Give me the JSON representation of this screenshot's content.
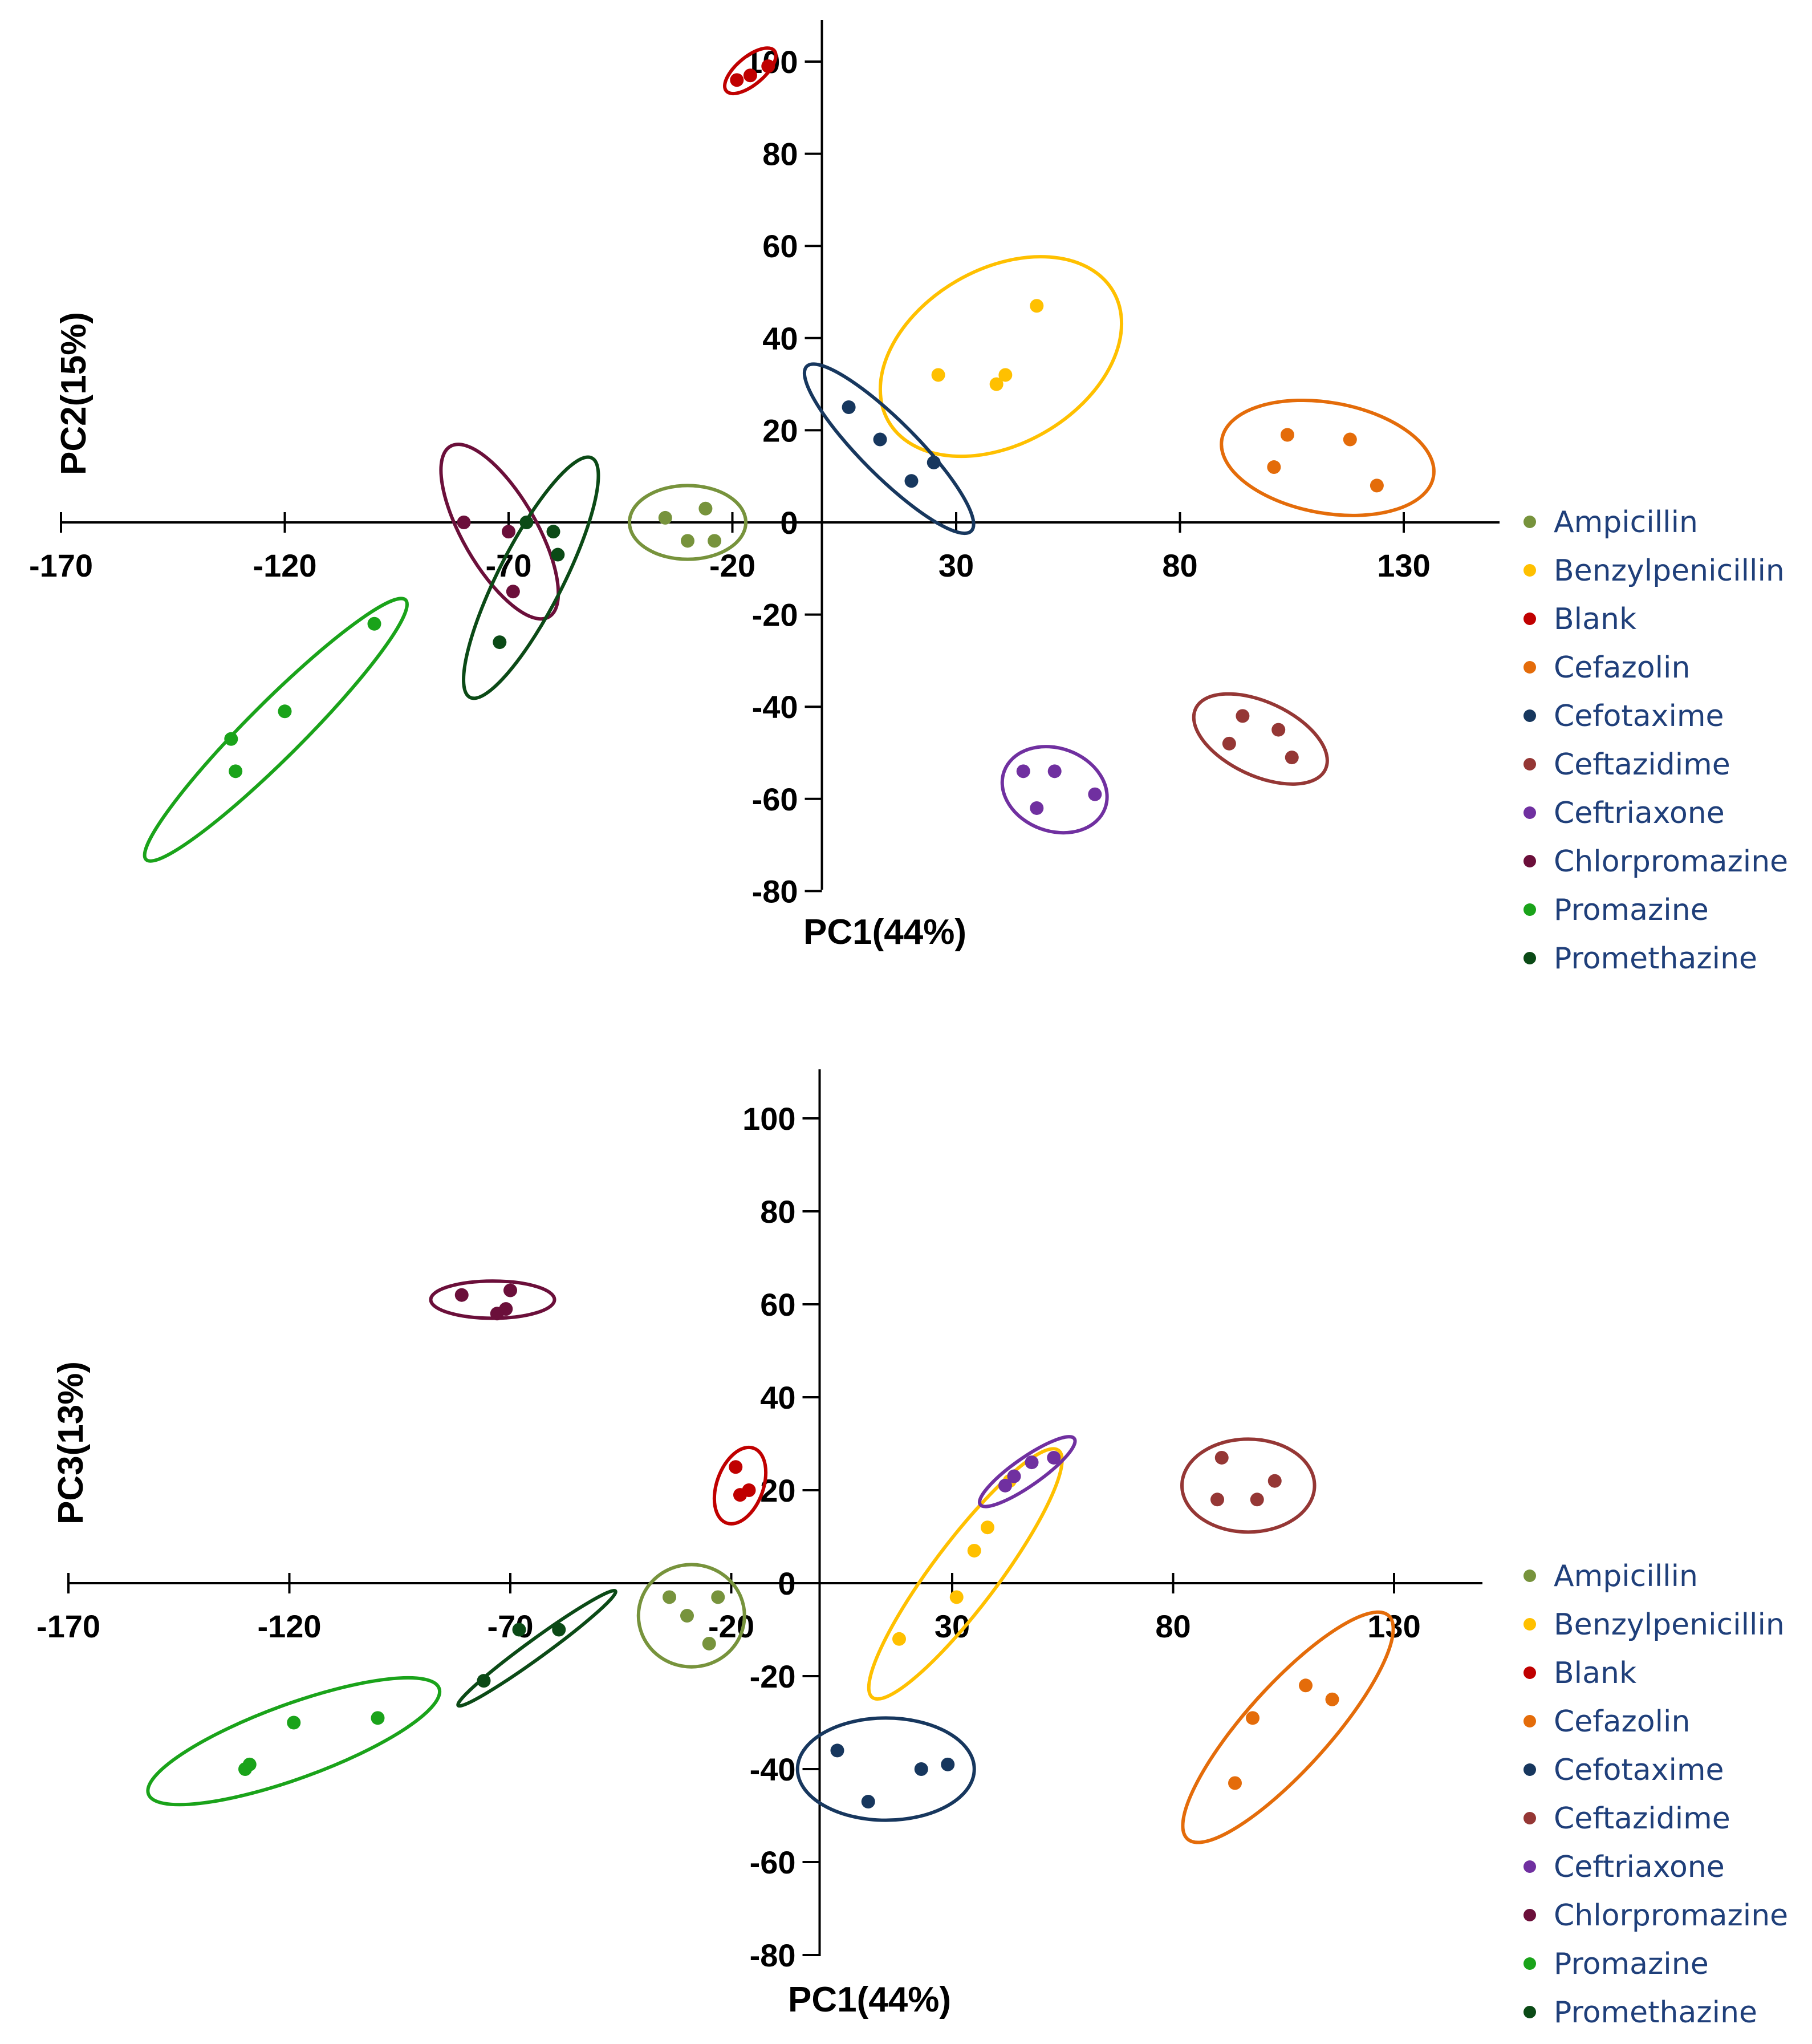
{
  "chart_data": [
    {
      "type": "scatter",
      "title": "",
      "xlabel": "PC1(44%)",
      "ylabel": "PC2(15%)",
      "xlim": [
        -170,
        150
      ],
      "ylim": [
        -80,
        110
      ],
      "xticks": [
        -170,
        -120,
        -70,
        -20,
        30,
        80,
        130
      ],
      "yticks": [
        -80,
        -60,
        -40,
        -20,
        0,
        20,
        40,
        60,
        80,
        100
      ],
      "xtick_labels": [
        "-170",
        "-120",
        "-70",
        "-20",
        "30",
        "80",
        "130"
      ],
      "ytick_labels": [
        "-80",
        "-60",
        "-40",
        "-20",
        "0",
        "20",
        "40",
        "60",
        "80",
        "100"
      ],
      "legend_position": "right",
      "series": [
        {
          "name": "Ampicillin",
          "color": "#77933c",
          "points": [
            [
              -35,
              1
            ],
            [
              -26,
              3
            ],
            [
              -30,
              -4
            ],
            [
              -24,
              -4
            ]
          ],
          "ellipse": {
            "cx": -30,
            "cy": 0,
            "rx": 13,
            "ry": 8,
            "angle": 0
          }
        },
        {
          "name": "Benzylpenicillin",
          "color": "#ffc000",
          "points": [
            [
              48,
              47
            ],
            [
              26,
              32
            ],
            [
              41,
              32
            ],
            [
              39,
              30
            ]
          ],
          "ellipse": {
            "cx": 40,
            "cy": 36,
            "rx": 29,
            "ry": 19,
            "angle": 30
          }
        },
        {
          "name": "Blank",
          "color": "#c00000",
          "points": [
            [
              -16,
              97
            ],
            [
              -12,
              99
            ],
            [
              -19,
              96
            ]
          ],
          "ellipse": {
            "cx": -16,
            "cy": 98,
            "rx": 7,
            "ry": 3,
            "angle": 40
          }
        },
        {
          "name": "Cefazolin",
          "color": "#e46c0a",
          "points": [
            [
              104,
              19
            ],
            [
              118,
              18
            ],
            [
              101,
              12
            ],
            [
              124,
              8
            ]
          ],
          "ellipse": {
            "cx": 113,
            "cy": 14,
            "rx": 24,
            "ry": 12,
            "angle": -10
          }
        },
        {
          "name": "Cefotaxime",
          "color": "#17375e",
          "points": [
            [
              6,
              25
            ],
            [
              13,
              18
            ],
            [
              20,
              9
            ],
            [
              25,
              13
            ]
          ],
          "ellipse": {
            "cx": 15,
            "cy": 16,
            "rx": 26,
            "ry": 6,
            "angle": -45
          }
        },
        {
          "name": "Ceftazidime",
          "color": "#953735",
          "points": [
            [
              94,
              -42
            ],
            [
              102,
              -45
            ],
            [
              91,
              -48
            ],
            [
              105,
              -51
            ]
          ],
          "ellipse": {
            "cx": 98,
            "cy": -47,
            "rx": 16,
            "ry": 8,
            "angle": -25
          }
        },
        {
          "name": "Ceftriaxone",
          "color": "#7030a0",
          "points": [
            [
              45,
              -54
            ],
            [
              52,
              -54
            ],
            [
              48,
              -62
            ],
            [
              61,
              -59
            ]
          ],
          "ellipse": {
            "cx": 52,
            "cy": -58,
            "rx": 12,
            "ry": 9,
            "angle": -20
          }
        },
        {
          "name": "Chlorpromazine",
          "color": "#6b0f3a",
          "points": [
            [
              -80,
              0
            ],
            [
              -70,
              -2
            ],
            [
              -69,
              -15
            ]
          ],
          "ellipse": {
            "cx": -72,
            "cy": -2,
            "rx": 22,
            "ry": 8,
            "angle": -60
          }
        },
        {
          "name": "Promazine",
          "color": "#1aa31a",
          "points": [
            [
              -100,
              -22
            ],
            [
              -120,
              -41
            ],
            [
              -132,
              -47
            ],
            [
              -131,
              -54
            ]
          ],
          "ellipse": {
            "cx": -122,
            "cy": -45,
            "rx": 41,
            "ry": 6,
            "angle": 45
          }
        },
        {
          "name": "Promethazine",
          "color": "#0b4a16",
          "points": [
            [
              -66,
              0
            ],
            [
              -60,
              -2
            ],
            [
              -59,
              -7
            ],
            [
              -72,
              -26
            ]
          ],
          "ellipse": {
            "cx": -65,
            "cy": -12,
            "rx": 30,
            "ry": 7,
            "angle": 63
          }
        }
      ]
    },
    {
      "type": "scatter",
      "title": "",
      "xlabel": "PC1(44%)",
      "ylabel": "PC3(13%)",
      "xlim": [
        -170,
        150
      ],
      "ylim": [
        -80,
        110
      ],
      "xticks": [
        -170,
        -120,
        -70,
        -20,
        30,
        80,
        130
      ],
      "yticks": [
        -80,
        -60,
        -40,
        -20,
        0,
        20,
        40,
        60,
        80,
        100
      ],
      "xtick_labels": [
        "-170",
        "-120",
        "-70",
        "-20",
        "30",
        "80",
        "130"
      ],
      "ytick_labels": [
        "-80",
        "-60",
        "-40",
        "-20",
        "0",
        "20",
        "40",
        "60",
        "80",
        "100"
      ],
      "legend_position": "right",
      "series": [
        {
          "name": "Ampicillin",
          "color": "#77933c",
          "points": [
            [
              -34,
              -3
            ],
            [
              -30,
              -7
            ],
            [
              -23,
              -3
            ],
            [
              -25,
              -13
            ]
          ],
          "ellipse": {
            "cx": -29,
            "cy": -7,
            "rx": 12,
            "ry": 11,
            "angle": 0
          }
        },
        {
          "name": "Benzylpenicillin",
          "color": "#ffc000",
          "points": [
            [
              18,
              -12
            ],
            [
              31,
              -3
            ],
            [
              35,
              7
            ],
            [
              38,
              12
            ],
            [
              43,
              22
            ]
          ],
          "ellipse": {
            "cx": 33,
            "cy": 2,
            "rx": 35,
            "ry": 7,
            "angle": 53
          }
        },
        {
          "name": "Blank",
          "color": "#c00000",
          "points": [
            [
              -19,
              25
            ],
            [
              -16,
              20
            ],
            [
              -18,
              19
            ]
          ],
          "ellipse": {
            "cx": -18,
            "cy": 21,
            "rx": 9,
            "ry": 5,
            "angle": 70
          }
        },
        {
          "name": "Cefazolin",
          "color": "#e46c0a",
          "points": [
            [
              110,
              -22
            ],
            [
              98,
              -29
            ],
            [
              116,
              -25
            ],
            [
              94,
              -43
            ]
          ],
          "ellipse": {
            "cx": 106,
            "cy": -31,
            "rx": 34,
            "ry": 9,
            "angle": 48
          }
        },
        {
          "name": "Cefotaxime",
          "color": "#17375e",
          "points": [
            [
              4,
              -36
            ],
            [
              23,
              -40
            ],
            [
              29,
              -39
            ],
            [
              11,
              -47
            ]
          ],
          "ellipse": {
            "cx": 15,
            "cy": -40,
            "rx": 20,
            "ry": 11,
            "angle": 0
          }
        },
        {
          "name": "Ceftazidime",
          "color": "#953735",
          "points": [
            [
              91,
              27
            ],
            [
              103,
              22
            ],
            [
              90,
              18
            ],
            [
              99,
              18
            ]
          ],
          "ellipse": {
            "cx": 97,
            "cy": 21,
            "rx": 15,
            "ry": 10,
            "angle": 0
          }
        },
        {
          "name": "Ceftriaxone",
          "color": "#7030a0",
          "points": [
            [
              42,
              21
            ],
            [
              48,
              26
            ],
            [
              53,
              27
            ],
            [
              44,
              23
            ]
          ],
          "ellipse": {
            "cx": 47,
            "cy": 24,
            "rx": 13,
            "ry": 3,
            "angle": 35
          }
        },
        {
          "name": "Chlorpromazine",
          "color": "#6b0f3a",
          "points": [
            [
              -81,
              62
            ],
            [
              -70,
              63
            ],
            [
              -71,
              59
            ],
            [
              -73,
              58
            ]
          ],
          "ellipse": {
            "cx": -74,
            "cy": 61,
            "rx": 14,
            "ry": 4,
            "angle": 0
          }
        },
        {
          "name": "Promazine",
          "color": "#1aa31a",
          "points": [
            [
              -100,
              -29
            ],
            [
              -119,
              -30
            ],
            [
              -130,
              -40
            ],
            [
              -129,
              -39
            ]
          ],
          "ellipse": {
            "cx": -119,
            "cy": -34,
            "rx": 35,
            "ry": 8,
            "angle": 20
          }
        },
        {
          "name": "Promethazine",
          "color": "#0b4a16",
          "points": [
            [
              -59,
              -10
            ],
            [
              -68,
              -10
            ],
            [
              -76,
              -21
            ]
          ],
          "ellipse": {
            "cx": -64,
            "cy": -14,
            "rx": 22,
            "ry": 2,
            "angle": 36
          }
        }
      ]
    }
  ]
}
